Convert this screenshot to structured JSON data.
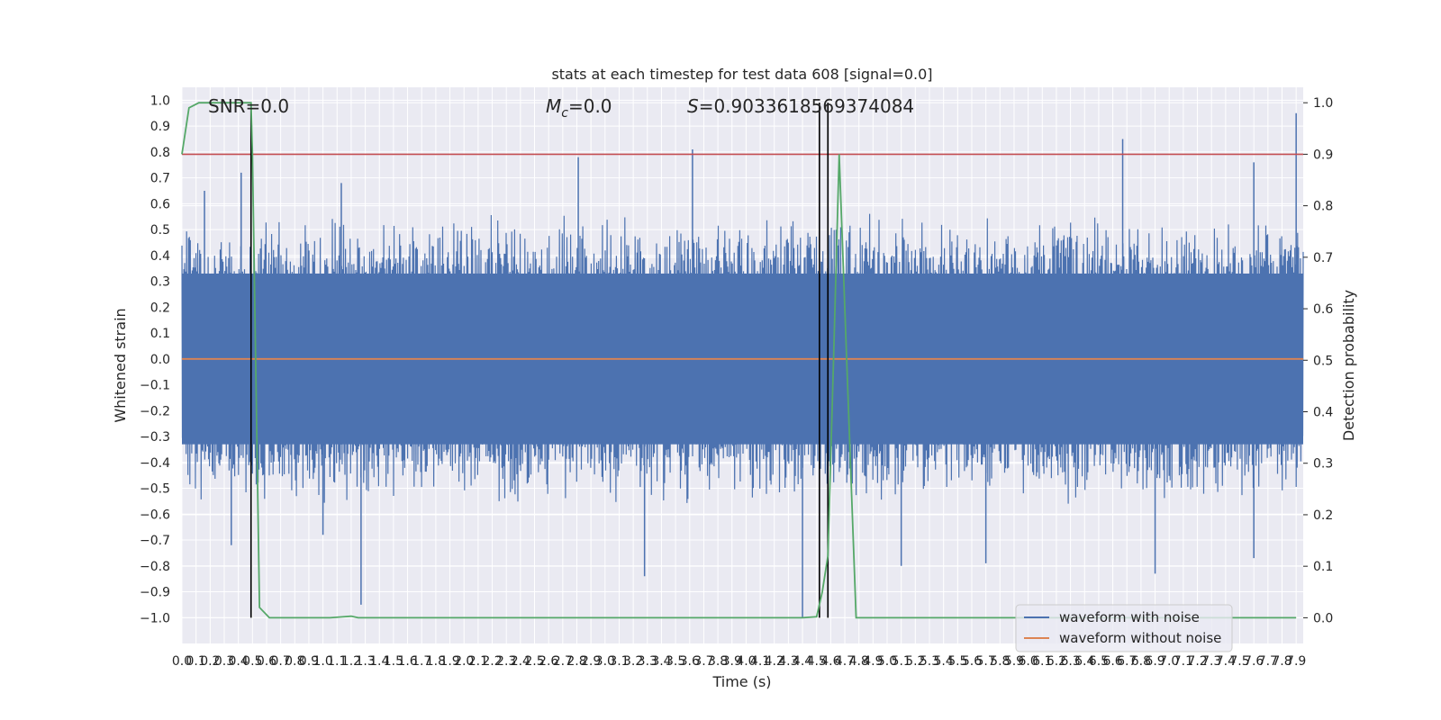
{
  "chart_data": {
    "type": "line",
    "title": "stats at each timestep for test data 608 [signal=0.0]",
    "xlabel": "Time (s)",
    "ylabel": "Whitened strain",
    "ylabel_right": "Detection probability",
    "xlim": [
      0.0,
      7.95
    ],
    "ylim": [
      -1.1,
      1.05
    ],
    "ylim_right": [
      -0.05,
      1.03
    ],
    "x_tick_labels": [
      "0.0",
      "0.1",
      "0.2",
      "0.3",
      "0.4",
      "0.5",
      "0.6",
      "0.7",
      "0.8",
      "0.9",
      "1.0",
      "1.1",
      "1.2",
      "1.3",
      "1.4",
      "1.5",
      "1.6",
      "1.7",
      "1.8",
      "1.9",
      "2.0",
      "2.1",
      "2.2",
      "2.3",
      "2.4",
      "2.5",
      "2.6",
      "2.7",
      "2.8",
      "2.9",
      "3.0",
      "3.1",
      "3.2",
      "3.3",
      "3.4",
      "3.5",
      "3.6",
      "3.7",
      "3.8",
      "3.9",
      "4.0",
      "4.1",
      "4.2",
      "4.3",
      "4.4",
      "4.5",
      "4.6",
      "4.7",
      "4.8",
      "4.9",
      "5.0",
      "5.1",
      "5.2",
      "5.3",
      "5.4",
      "5.5",
      "5.6",
      "5.7",
      "5.8",
      "5.9",
      "6.0",
      "6.1",
      "6.2",
      "6.3",
      "6.4",
      "6.5",
      "6.6",
      "6.7",
      "6.8",
      "6.9",
      "7.0",
      "7.1",
      "7.2",
      "7.3",
      "7.4",
      "7.5",
      "7.6",
      "7.7",
      "7.8",
      "7.9"
    ],
    "y_tick_labels": [
      "−1.0",
      "−0.9",
      "−0.8",
      "−0.7",
      "−0.6",
      "−0.5",
      "−0.4",
      "−0.3",
      "−0.2",
      "−0.1",
      "0.0",
      "0.1",
      "0.2",
      "0.3",
      "0.4",
      "0.5",
      "0.6",
      "0.7",
      "0.8",
      "0.9",
      "1.0"
    ],
    "y_tick_labels_right": [
      "0.0",
      "0.1",
      "0.2",
      "0.3",
      "0.4",
      "0.5",
      "0.6",
      "0.7",
      "0.8",
      "0.9",
      "1.0"
    ],
    "annotations": {
      "snr": "SNR=0.0",
      "mc_symbol": "M",
      "mc_subscript": "c",
      "mc_value": "=0.0",
      "s_symbol": "S",
      "s_value": "=0.9033618569374084"
    },
    "legend": {
      "placement": "lower-right",
      "entries": [
        "waveform with noise",
        "waveform without noise"
      ]
    },
    "series": [
      {
        "name": "waveform with noise",
        "axis": "left",
        "color": "#4c72b0",
        "style": "dense noise, envelope roughly ±0.4 to ±0.6, spikes up to about 0.95 and down to about −1.0",
        "peaks": [
          {
            "x": 0.16,
            "y": 0.65
          },
          {
            "x": 0.42,
            "y": 0.72
          },
          {
            "x": 1.13,
            "y": 0.68
          },
          {
            "x": 2.81,
            "y": 0.78
          },
          {
            "x": 3.62,
            "y": 0.81
          },
          {
            "x": 6.67,
            "y": 0.85
          },
          {
            "x": 7.6,
            "y": 0.76
          },
          {
            "x": 7.9,
            "y": 0.95
          },
          {
            "x": 1.27,
            "y": -0.95
          },
          {
            "x": 3.28,
            "y": -0.84
          },
          {
            "x": 4.4,
            "y": -1.0
          },
          {
            "x": 5.1,
            "y": -0.8
          },
          {
            "x": 5.7,
            "y": -0.79
          },
          {
            "x": 6.9,
            "y": -0.83
          },
          {
            "x": 7.6,
            "y": -0.77
          },
          {
            "x": 0.35,
            "y": -0.72
          },
          {
            "x": 1.0,
            "y": -0.68
          }
        ]
      },
      {
        "name": "waveform without noise",
        "axis": "left",
        "color": "#dd8452",
        "x": [
          0.0,
          7.95
        ],
        "y": [
          0.0,
          0.0
        ]
      },
      {
        "axis": "right",
        "color": "#55a868",
        "x": [
          0.0,
          0.05,
          0.12,
          0.2,
          0.3,
          0.4,
          0.49,
          0.5,
          0.55,
          0.62,
          0.7,
          0.8,
          0.9,
          1.0,
          1.05,
          1.15,
          1.2,
          1.25,
          1.3,
          2.0,
          3.0,
          4.0,
          4.4,
          4.5,
          4.54,
          4.58,
          4.62,
          4.66,
          4.7,
          4.74,
          4.78,
          5.0,
          6.0,
          7.0,
          7.9
        ],
        "y": [
          0.9,
          0.99,
          1.0,
          1.0,
          1.0,
          1.0,
          1.0,
          0.9,
          0.02,
          0.0,
          0.0,
          0.0,
          0.0,
          0.0,
          0.0,
          0.002,
          0.003,
          0.0,
          0.0,
          0.0,
          0.0,
          0.0,
          0.0,
          0.002,
          0.05,
          0.12,
          0.5,
          0.9,
          0.6,
          0.3,
          0.0,
          0.0,
          0.0,
          0.0,
          0.0
        ]
      }
    ],
    "hlines": [
      {
        "axis": "right",
        "y": 0.9,
        "color": "#c44e52"
      }
    ],
    "vlines": [
      {
        "x": 0.49,
        "axis_right_range": [
          0.0,
          1.0
        ],
        "color": "#000000"
      },
      {
        "x": 4.52,
        "axis_right_range": [
          0.0,
          1.0
        ],
        "color": "#000000"
      },
      {
        "x": 4.58,
        "axis_right_range": [
          0.0,
          1.0
        ],
        "color": "#000000"
      }
    ],
    "grid": true,
    "background": "#eaeaf2"
  }
}
